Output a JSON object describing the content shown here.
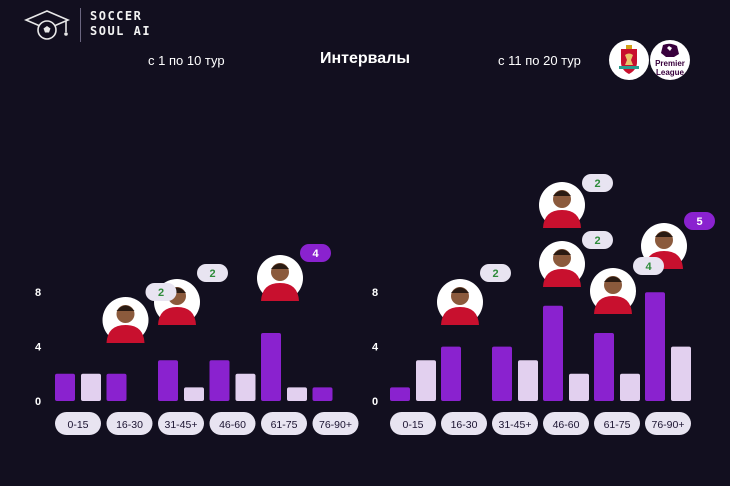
{
  "brand": {
    "line1": "SOCCER",
    "line2": "SOUL AI"
  },
  "title": "Интервалы",
  "badges": {
    "premier_league_line1": "Premier",
    "premier_league_line2": "League"
  },
  "colors": {
    "dark": "#8a22cf",
    "light": "#e2d0ef",
    "pill_bg": "#e8e4f1",
    "pill_text": "#1a1230",
    "badge_purple": "#8a22cf",
    "badge_green_text": "#2e8b3a"
  },
  "chart_data": [
    {
      "type": "bar",
      "title": "с 1 по 10 тур",
      "categories": [
        "0-15",
        "16-30",
        "31-45+",
        "46-60",
        "61-75",
        "76-90+"
      ],
      "yticks": [
        0,
        4,
        8
      ],
      "ylim": [
        0,
        8
      ],
      "series": [
        {
          "values": [
            2,
            2,
            3,
            3,
            5,
            1
          ]
        },
        {
          "values": [
            2,
            0,
            1,
            2,
            1,
            0
          ]
        }
      ],
      "annotations": [
        {
          "category": "16-30",
          "value": 2,
          "style": "light"
        },
        {
          "category": "31-45+",
          "value": 2,
          "style": "light"
        },
        {
          "category": "61-75",
          "value": 4,
          "style": "purple"
        }
      ]
    },
    {
      "type": "bar",
      "title": "с 11 по 20 тур",
      "categories": [
        "0-15",
        "16-30",
        "31-45+",
        "46-60",
        "61-75",
        "76-90+"
      ],
      "yticks": [
        0,
        4,
        8
      ],
      "ylim": [
        0,
        8
      ],
      "series": [
        {
          "values": [
            1,
            4,
            4,
            7,
            5,
            8
          ]
        },
        {
          "values": [
            3,
            0,
            3,
            2,
            2,
            4
          ]
        }
      ],
      "annotations": [
        {
          "category": "16-30",
          "value": 2,
          "style": "light"
        },
        {
          "category": "46-60",
          "value": 2,
          "style": "light"
        },
        {
          "category": "46-60",
          "value": 2,
          "style": "light"
        },
        {
          "category": "61-75",
          "value": 4,
          "style": "light"
        },
        {
          "category": "76-90+",
          "value": 5,
          "style": "purple"
        }
      ]
    }
  ]
}
